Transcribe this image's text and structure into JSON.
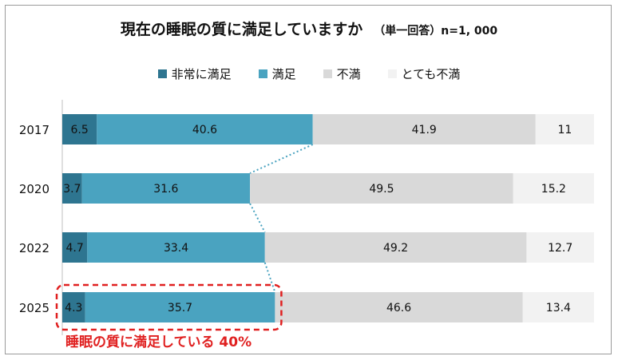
{
  "chart_data": {
    "type": "bar",
    "orientation": "horizontal",
    "stacked": true,
    "title": "現在の睡眠の質に満足していますか",
    "subtitle": "（単一回答）n=1, 000",
    "categories": [
      "2017",
      "2020",
      "2022",
      "2025"
    ],
    "series": [
      {
        "name": "非常に満足",
        "color": "#2e7590",
        "text_color": "#111111",
        "values": [
          6.5,
          3.7,
          4.7,
          4.3
        ]
      },
      {
        "name": "満足",
        "color": "#4aa3c0",
        "text_color": "#111111",
        "values": [
          40.6,
          31.6,
          33.4,
          35.7
        ]
      },
      {
        "name": "不満",
        "color": "#d9d9d9",
        "text_color": "#111111",
        "values": [
          41.9,
          49.5,
          49.2,
          46.6
        ]
      },
      {
        "name": "とても不満",
        "color": "#f2f2f2",
        "text_color": "#111111",
        "values": [
          11,
          15.2,
          12.7,
          13.4
        ]
      }
    ],
    "value_labels": [
      [
        "6.5",
        "40.6",
        "41.9",
        "11"
      ],
      [
        "3.7",
        "31.6",
        "49.5",
        "15.2"
      ],
      [
        "4.7",
        "33.4",
        "49.2",
        "12.7"
      ],
      [
        "4.3",
        "35.7",
        "46.6",
        "13.4"
      ]
    ],
    "xlim": [
      0,
      100
    ],
    "legend": "top",
    "grid": false,
    "connector_lines": true,
    "highlight": {
      "category": "2025",
      "label": "睡眠の質に満足している 40%",
      "color": "#e02020"
    }
  }
}
